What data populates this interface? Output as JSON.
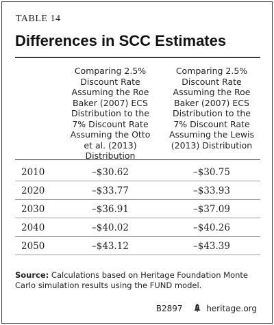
{
  "table_label": "TABLE 14",
  "title": "Differences in SCC Estimates",
  "columns": [
    "Comparing 2.5% Discount Rate Assuming the Roe Baker (2007) ECS Distribution to the 7% Discount Rate Assuming the Otto et al. (2013) Distribution",
    "Comparing 2.5% Discount Rate Assuming the Roe Baker (2007) ECS Distribution to the 7% Discount Rate Assuming the Lewis (2013) Distribution"
  ],
  "rows": [
    {
      "year": "2010",
      "otto": "–$30.62",
      "lewis": "–$30.75"
    },
    {
      "year": "2020",
      "otto": "–$33.77",
      "lewis": "–$33.93"
    },
    {
      "year": "2030",
      "otto": "–$36.91",
      "lewis": "–$37.09"
    },
    {
      "year": "2040",
      "otto": "–$40.02",
      "lewis": "–$40.26"
    },
    {
      "year": "2050",
      "otto": "–$43.12",
      "lewis": "–$43.39"
    }
  ],
  "source": {
    "label": "Source:",
    "text": "Calculations based on Heritage Foundation Monte Carlo simulation results using the FUND model."
  },
  "footer": {
    "code": "B2897",
    "site": "heritage.org",
    "icon": "liberty-bell-icon"
  }
}
